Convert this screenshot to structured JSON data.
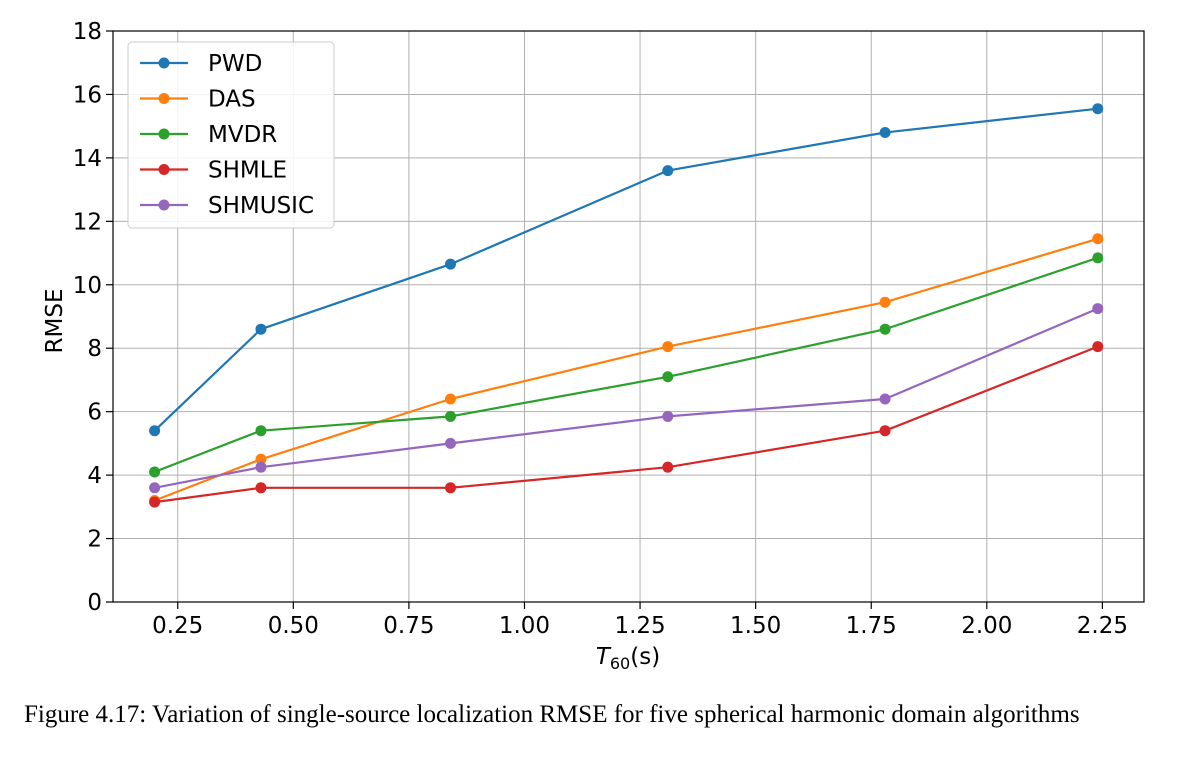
{
  "chart_data": {
    "type": "line",
    "xlabel_main": "T",
    "xlabel_sub": "60",
    "xlabel_unit": "(s)",
    "ylabel": "RMSE",
    "xlim": [
      0.11,
      2.34
    ],
    "ylim": [
      0,
      18
    ],
    "xticks": [
      0.25,
      0.5,
      0.75,
      1.0,
      1.25,
      1.5,
      1.75,
      2.0,
      2.25
    ],
    "xtick_labels": [
      "0.25",
      "0.50",
      "0.75",
      "1.00",
      "1.25",
      "1.50",
      "1.75",
      "2.00",
      "2.25"
    ],
    "yticks": [
      0,
      2,
      4,
      6,
      8,
      10,
      12,
      14,
      16,
      18
    ],
    "ytick_labels": [
      "0",
      "2",
      "4",
      "6",
      "8",
      "10",
      "12",
      "14",
      "16",
      "18"
    ],
    "grid": true,
    "legend_position": "top-left",
    "x": [
      0.2,
      0.43,
      0.84,
      1.31,
      1.78,
      2.24
    ],
    "series": [
      {
        "name": "PWD",
        "color": "#1f77b4",
        "values": [
          5.4,
          8.6,
          10.65,
          13.6,
          14.8,
          15.55
        ]
      },
      {
        "name": "DAS",
        "color": "#ff7f0e",
        "values": [
          3.2,
          4.5,
          6.4,
          8.05,
          9.45,
          11.45
        ]
      },
      {
        "name": "MVDR",
        "color": "#2ca02c",
        "values": [
          4.1,
          5.4,
          5.85,
          7.1,
          8.6,
          10.85
        ]
      },
      {
        "name": "SHMLE",
        "color": "#d62728",
        "values": [
          3.15,
          3.6,
          3.6,
          4.25,
          5.4,
          8.05
        ]
      },
      {
        "name": "SHMUSIC",
        "color": "#9467bd",
        "values": [
          3.6,
          4.25,
          5.0,
          5.85,
          6.4,
          9.25
        ]
      }
    ]
  },
  "caption": "Figure 4.17: Variation of single-source localization RMSE for five spherical harmonic domain algorithms"
}
